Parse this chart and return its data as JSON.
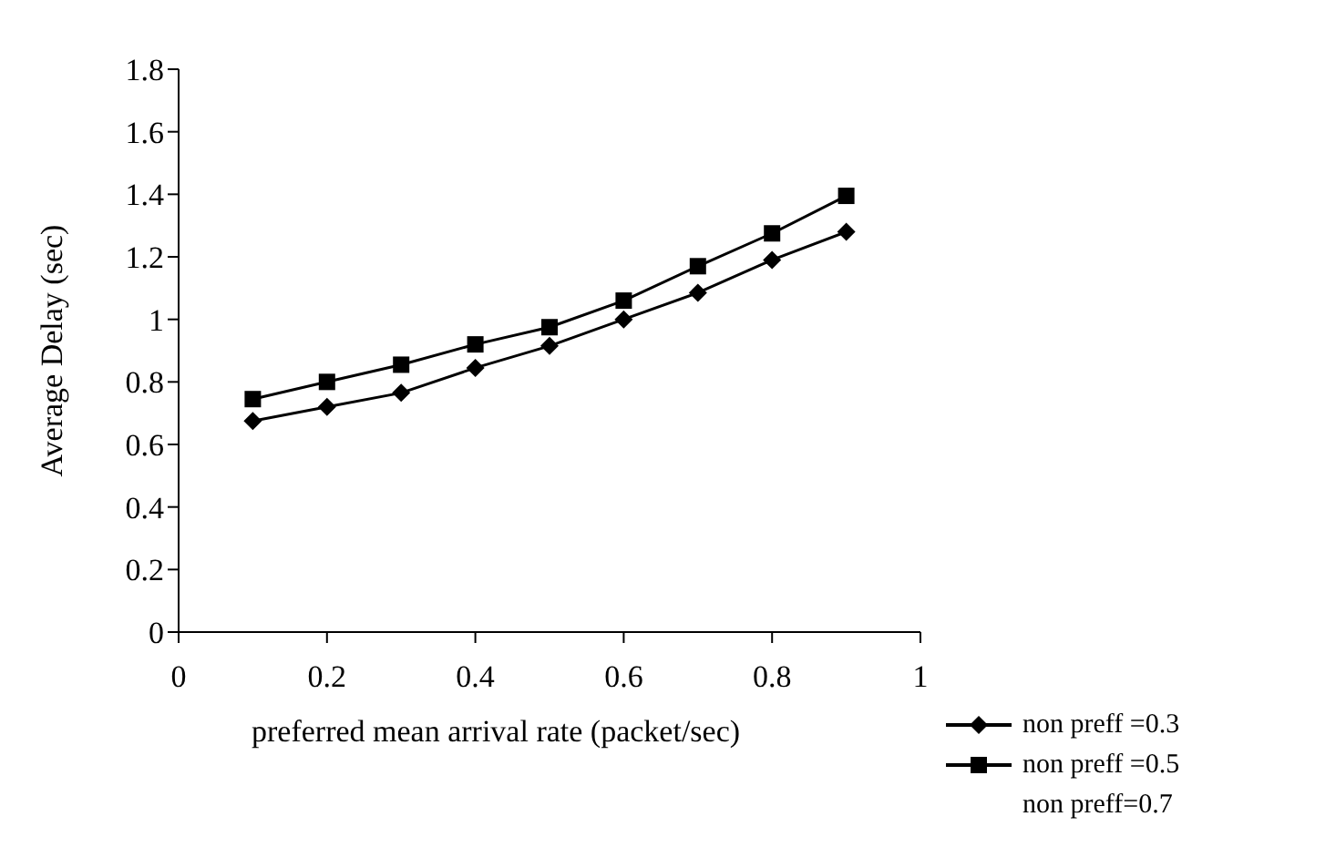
{
  "chart_data": {
    "type": "line",
    "xlabel": "preferred mean arrival rate (packet/sec)",
    "ylabel": "Average Delay (sec)",
    "x": [
      0.1,
      0.2,
      0.3,
      0.4,
      0.5,
      0.6,
      0.7,
      0.8,
      0.9
    ],
    "series": [
      {
        "name": "non preff =0.3",
        "color": "#000000",
        "marker": "diamond",
        "values": [
          0.675,
          0.72,
          0.765,
          0.845,
          0.915,
          1.0,
          1.085,
          1.19,
          1.28
        ]
      },
      {
        "name": "non preff =0.5",
        "color": "#000000",
        "marker": "square",
        "values": [
          0.745,
          0.8,
          0.855,
          0.92,
          0.975,
          1.06,
          1.17,
          1.275,
          1.395
        ]
      },
      {
        "name": "non preff=0.7",
        "color": "#000000",
        "marker": "none",
        "values": [
          null,
          null,
          null,
          null,
          null,
          null,
          null,
          null,
          null
        ]
      }
    ],
    "xlim": [
      0,
      1
    ],
    "xticks": [
      0,
      0.2,
      0.4,
      0.6,
      0.8,
      1
    ],
    "ylim": [
      0,
      1.8
    ],
    "yticks": [
      0,
      0.2,
      0.4,
      0.6,
      0.8,
      1,
      1.2,
      1.4,
      1.6,
      1.8
    ],
    "grid": false,
    "legend": "bottom right",
    "line_style": "solid"
  }
}
